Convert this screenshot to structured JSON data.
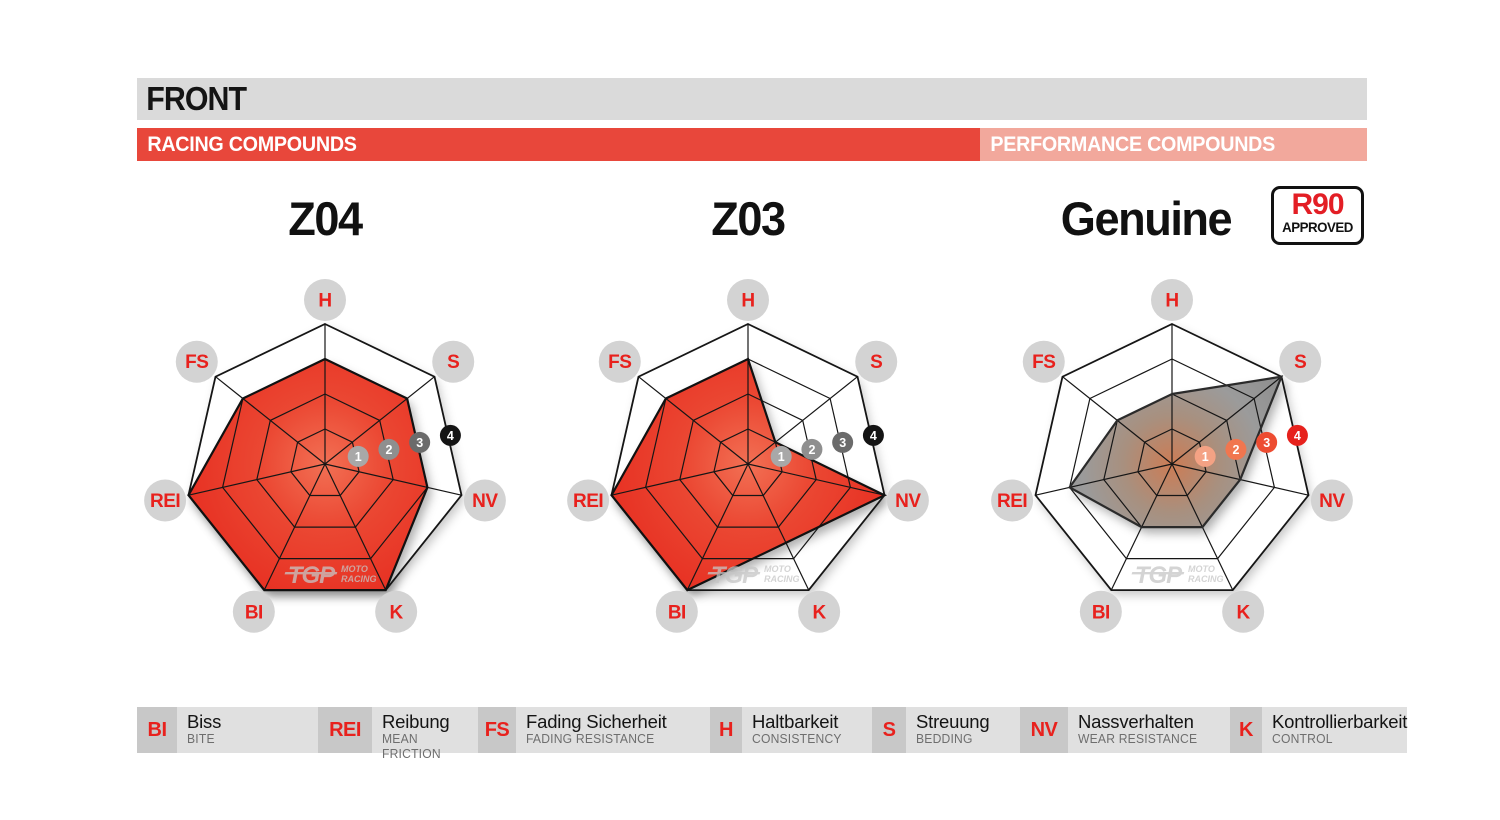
{
  "header": {
    "title": "FRONT",
    "racing_label": "RACING COMPOUNDS",
    "performance_label": "PERFORMANCE COMPOUNDS"
  },
  "badge": {
    "top": "R90",
    "bottom": "APPROVED"
  },
  "watermark": {
    "brand": "TGP",
    "sub1": "MOTO",
    "sub2": "RACING"
  },
  "scale_values": [
    1,
    2,
    3,
    4
  ],
  "colors": {
    "front_bar_bg": "#dadada",
    "racing_bar_bg": "#e8473b",
    "performance_bar_bg": "#f2a89c",
    "axis_label_red": "#e8211d",
    "axis_circle_bg": "#d3d3d3",
    "badge_red": "#e31e25",
    "grid_line": "#161616",
    "racing_fill_center": "#f27054",
    "racing_fill_edge": "#e73123",
    "racing_stroke": "#111111",
    "genuine_fill_center": "#cc7c55",
    "genuine_fill_mid": "#a8907f",
    "genuine_fill_edge": "#8d8d8d",
    "genuine_stroke": "#2b2b2b",
    "racing_markers": [
      "#a8a8a8",
      "#8f8f8f",
      "#6b6b6b",
      "#141414"
    ],
    "genuine_markers": [
      "#f4a284",
      "#f1764f",
      "#ed4c31",
      "#e6211c"
    ],
    "watermark_gray": "#c6c6c6"
  },
  "chart_data": {
    "type": "radar",
    "axes": [
      "H",
      "S",
      "NV",
      "K",
      "BI",
      "REI",
      "FS"
    ],
    "scale": [
      0,
      4
    ],
    "rings": 4,
    "series": [
      {
        "name": "Z04",
        "group": "racing",
        "values": {
          "H": 3,
          "S": 3,
          "NV": 3,
          "K": 4,
          "BI": 4,
          "REI": 4,
          "FS": 3
        }
      },
      {
        "name": "Z03",
        "group": "racing",
        "values": {
          "H": 3,
          "S": 1,
          "NV": 4,
          "K": 2.5,
          "BI": 4,
          "REI": 4,
          "FS": 3
        }
      },
      {
        "name": "Genuine",
        "group": "performance",
        "badge": "R90 APPROVED",
        "values": {
          "H": 2,
          "S": 4,
          "NV": 2,
          "K": 2,
          "BI": 2,
          "REI": 3,
          "FS": 2
        }
      }
    ]
  },
  "legend": [
    {
      "abbr": "BI",
      "de": "Biss",
      "en": "BITE"
    },
    {
      "abbr": "REI",
      "de": "Reibung",
      "en": "MEAN FRICTION"
    },
    {
      "abbr": "FS",
      "de": "Fading Sicherheit",
      "en": "FADING RESISTANCE"
    },
    {
      "abbr": "H",
      "de": "Haltbarkeit",
      "en": "CONSISTENCY"
    },
    {
      "abbr": "S",
      "de": "Streuung",
      "en": "BEDDING"
    },
    {
      "abbr": "NV",
      "de": "Nassverhalten",
      "en": "WEAR RESISTANCE"
    },
    {
      "abbr": "K",
      "de": "Kontrollierbarkeit",
      "en": "CONTROL"
    }
  ]
}
